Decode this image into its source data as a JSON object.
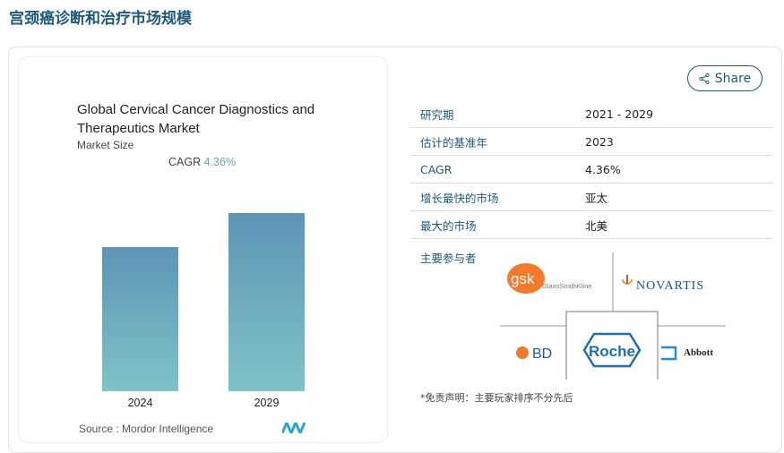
{
  "page_title": "宫颈癌诊断和治疗市场规模",
  "chart_card": {
    "title": "Global Cervical Cancer Diagnostics and Therapeutics Market",
    "subtitle": "Market Size",
    "cagr_label": "CAGR",
    "cagr_value": "4.36%",
    "source": "Source : Mordor Intelligence"
  },
  "chart_data": {
    "type": "bar",
    "categories": [
      "2024",
      "2029"
    ],
    "values": [
      1.0,
      1.238
    ],
    "title": "Global Cervical Cancer Diagnostics and Therapeutics Market",
    "xlabel": "",
    "ylabel": "",
    "grid": false,
    "colors": {
      "bar_top": "#5e94b6",
      "bar_bottom": "#7ec3c8"
    }
  },
  "share_label": "Share",
  "table": [
    {
      "key": "研究期",
      "value": "2021 - 2029"
    },
    {
      "key": "估计的基准年",
      "value": "2023"
    },
    {
      "key": "CAGR",
      "value": "4.36%"
    },
    {
      "key": "增长最快的市场",
      "value": "亚太"
    },
    {
      "key": "最大的市场",
      "value": "北美"
    }
  ],
  "players_label": "主要参与者",
  "players": [
    "GlaxoSmithKline",
    "NOVARTIS",
    "BD",
    "Roche",
    "Abbott"
  ],
  "disclaimer": "*免责声明：主要玩家排序不分先后",
  "colors": {
    "accent": "#1c5a7d"
  }
}
